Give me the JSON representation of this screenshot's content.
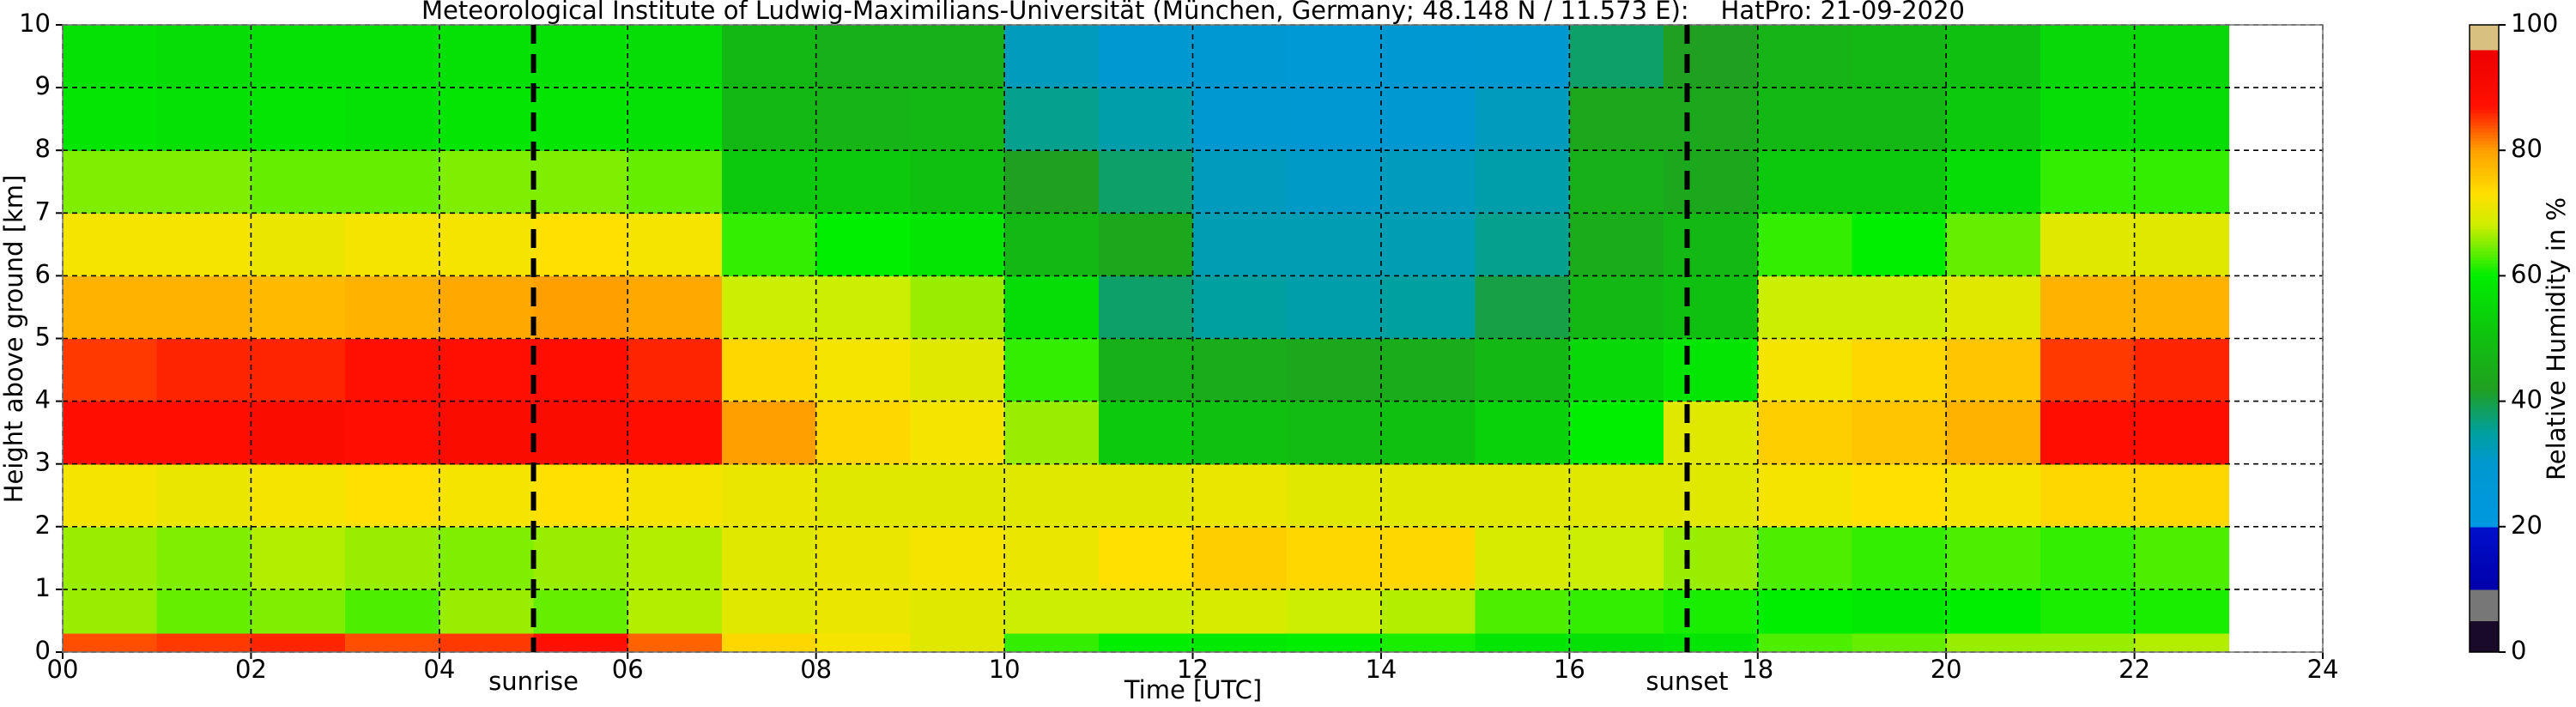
{
  "chart_data": {
    "type": "heatmap",
    "title": "Meteorological Institute of Ludwig-Maximilians-Universität (München, Germany; 48.148 N / 11.573 E):    HatPro: 21-09-2020",
    "x_label": "Time [UTC]",
    "y_label": "Height above ground [km]",
    "colorbar_label": "Relative Humidity in %",
    "xlim": [
      0,
      24
    ],
    "ylim": [
      0,
      10
    ],
    "xticks": [
      {
        "value": 0,
        "label": "00"
      },
      {
        "value": 2,
        "label": "02"
      },
      {
        "value": 4,
        "label": "04"
      },
      {
        "value": 6,
        "label": "06"
      },
      {
        "value": 8,
        "label": "08"
      },
      {
        "value": 10,
        "label": "10"
      },
      {
        "value": 12,
        "label": "12"
      },
      {
        "value": 14,
        "label": "14"
      },
      {
        "value": 16,
        "label": "16"
      },
      {
        "value": 18,
        "label": "18"
      },
      {
        "value": 20,
        "label": "20"
      },
      {
        "value": 22,
        "label": "22"
      },
      {
        "value": 24,
        "label": "24"
      }
    ],
    "yticks": [
      0,
      1,
      2,
      3,
      4,
      5,
      6,
      7,
      8,
      9,
      10
    ],
    "grid": true,
    "x_edges": [
      0,
      1,
      2,
      3,
      4,
      5,
      6,
      7,
      8,
      9,
      10,
      11,
      12,
      13,
      14,
      15,
      16,
      17,
      18,
      19,
      20,
      21,
      22,
      23
    ],
    "y_edges": [
      0,
      0.3,
      1,
      2,
      3,
      4,
      5,
      6,
      7,
      8,
      9,
      10
    ],
    "values": [
      [
        84,
        85,
        86,
        84,
        85,
        87,
        83,
        74,
        72,
        70,
        62,
        60,
        59,
        60,
        61,
        58,
        57,
        58,
        63,
        64,
        66,
        66,
        67
      ],
      [
        66,
        64,
        65,
        63,
        66,
        64,
        67,
        70,
        71,
        70,
        68,
        68,
        69,
        68,
        67,
        63,
        62,
        61,
        60,
        59,
        60,
        61,
        61
      ],
      [
        66,
        65,
        67,
        66,
        65,
        66,
        67,
        70,
        71,
        72,
        71,
        73,
        75,
        74,
        74,
        69,
        68,
        66,
        63,
        62,
        63,
        62,
        63
      ],
      [
        72,
        71,
        72,
        73,
        72,
        73,
        72,
        71,
        70,
        70,
        70,
        70,
        71,
        70,
        70,
        70,
        70,
        70,
        72,
        73,
        72,
        74,
        74
      ],
      [
        88,
        88,
        89,
        88,
        89,
        89,
        88,
        80,
        74,
        72,
        66,
        52,
        50,
        49,
        50,
        54,
        60,
        70,
        75,
        76,
        78,
        88,
        88
      ],
      [
        85,
        86,
        86,
        87,
        87,
        88,
        86,
        74,
        72,
        70,
        62,
        46,
        45,
        44,
        45,
        48,
        55,
        58,
        72,
        74,
        76,
        85,
        86
      ],
      [
        78,
        78,
        77,
        78,
        79,
        80,
        79,
        68,
        68,
        66,
        56,
        38,
        35,
        34,
        35,
        40,
        48,
        50,
        68,
        68,
        70,
        78,
        78
      ],
      [
        72,
        72,
        71,
        72,
        72,
        73,
        72,
        62,
        60,
        58,
        48,
        44,
        33,
        33,
        33,
        36,
        45,
        48,
        62,
        60,
        64,
        70,
        70
      ],
      [
        65,
        65,
        64,
        64,
        65,
        65,
        64,
        52,
        52,
        50,
        42,
        38,
        32,
        31,
        32,
        34,
        46,
        44,
        52,
        52,
        56,
        62,
        62
      ],
      [
        58,
        57,
        58,
        57,
        58,
        58,
        57,
        48,
        47,
        48,
        36,
        34,
        30,
        29,
        30,
        32,
        44,
        44,
        48,
        48,
        52,
        56,
        56
      ],
      [
        57,
        56,
        57,
        57,
        57,
        57,
        56,
        48,
        46,
        46,
        32,
        30,
        28,
        27,
        28,
        30,
        38,
        42,
        47,
        48,
        50,
        55,
        55
      ]
    ],
    "clim": [
      0,
      100
    ],
    "cticks": [
      0,
      20,
      40,
      60,
      80,
      100
    ],
    "colorscale": [
      [
        0,
        "#1a0a2a"
      ],
      [
        5,
        "#1a0a2a"
      ],
      [
        5,
        "#777777"
      ],
      [
        10,
        "#777777"
      ],
      [
        10,
        "#0000aa"
      ],
      [
        20,
        "#0010cc"
      ],
      [
        20,
        "#0098e0"
      ],
      [
        30,
        "#0098d0"
      ],
      [
        35,
        "#00a0a0"
      ],
      [
        42,
        "#20a020"
      ],
      [
        50,
        "#10c010"
      ],
      [
        60,
        "#00ee00"
      ],
      [
        68,
        "#ccee00"
      ],
      [
        73,
        "#ffe000"
      ],
      [
        80,
        "#ffa000"
      ],
      [
        87,
        "#ff1000"
      ],
      [
        96,
        "#ee0000"
      ],
      [
        96,
        "#d8c080"
      ],
      [
        100,
        "#d8c080"
      ]
    ],
    "annotations": [
      {
        "text": "sunrise",
        "x": 5.0
      },
      {
        "text": "sunset",
        "x": 17.25
      }
    ]
  }
}
